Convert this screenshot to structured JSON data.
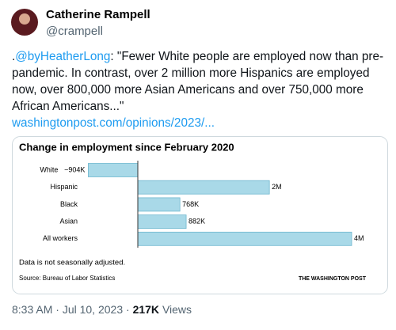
{
  "author": {
    "name": "Catherine Rampell",
    "handle": "@crampell"
  },
  "tweet": {
    "prefix": ".",
    "mention": "@byHeatherLong",
    "text": ": \"Fewer White people are employed now than pre-pandemic. In contrast, over 2 million more Hispanics are employed now, over 800,000 more Asian Americans and over 750,000 more African Americans...\"",
    "link": "washingtonpost.com/opinions/2023/..."
  },
  "chart_data": {
    "type": "bar",
    "orientation": "horizontal",
    "title": "Change in employment since February 2020",
    "categories": [
      "White",
      "Hispanic",
      "Black",
      "Asian",
      "All workers"
    ],
    "values": [
      -904000,
      2400000,
      768000,
      882000,
      3900000
    ],
    "value_labels": [
      "−904K",
      "2M",
      "768K",
      "882K",
      "4M"
    ],
    "color": "#a9d9e8",
    "edge_color": "#6fb7cf",
    "note": "Data is not seasonally adjusted.",
    "source": "Source: Bureau of Labor Statistics",
    "credit": "THE WASHINGTON POST"
  },
  "meta": {
    "time": "8:33 AM",
    "separator": "·",
    "date": "Jul 10, 2023",
    "views": "217K",
    "views_label": "Views"
  }
}
